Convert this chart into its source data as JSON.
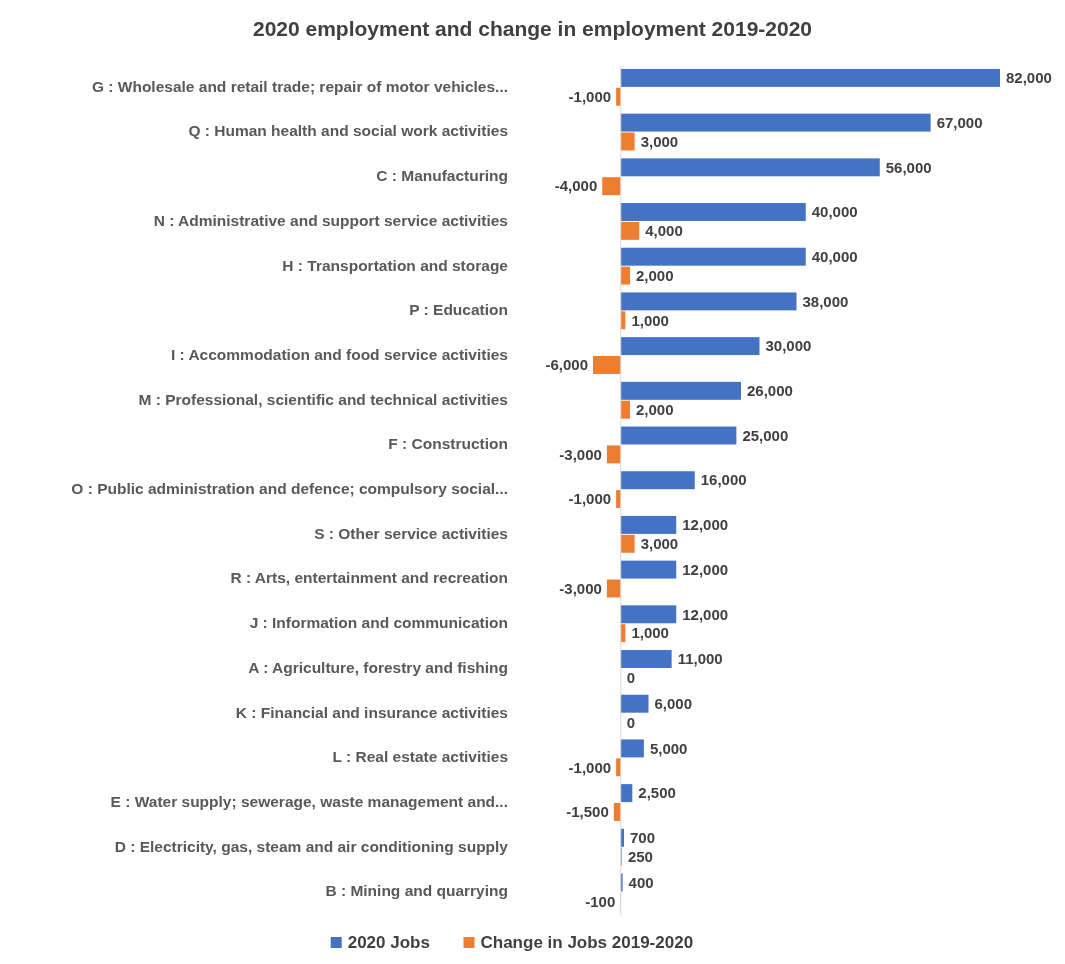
{
  "chart_data": {
    "type": "bar",
    "orientation": "horizontal",
    "title": "2020 employment and change in employment 2019-2020",
    "categories": [
      "G : Wholesale and retail trade; repair of motor vehicles...",
      "Q : Human health and social work activities",
      "C : Manufacturing",
      "N : Administrative and support service activities",
      "H : Transportation and storage",
      "P : Education",
      "I : Accommodation and food service activities",
      "M : Professional, scientific and technical activities",
      "F : Construction",
      "O : Public administration and defence; compulsory social...",
      "S : Other service activities",
      "R : Arts, entertainment and recreation",
      "J : Information and communication",
      "A : Agriculture, forestry and fishing",
      "K : Financial and insurance activities",
      "L : Real estate activities",
      "E : Water supply; sewerage, waste management and...",
      "D : Electricity, gas, steam and air conditioning supply",
      "B : Mining and quarrying"
    ],
    "series": [
      {
        "name": "2020 Jobs",
        "color": "#4472c4",
        "values": [
          82000,
          67000,
          56000,
          40000,
          40000,
          38000,
          30000,
          26000,
          25000,
          16000,
          12000,
          12000,
          12000,
          11000,
          6000,
          5000,
          2500,
          700,
          400
        ],
        "value_labels": [
          "82,000",
          "67,000",
          "56,000",
          "40,000",
          "40,000",
          "38,000",
          "30,000",
          "26,000",
          "25,000",
          "16,000",
          "12,000",
          "12,000",
          "12,000",
          "11,000",
          "6,000",
          "5,000",
          "2,500",
          "700",
          "400"
        ]
      },
      {
        "name": "Change in Jobs 2019-2020",
        "color": "#ed7d31",
        "values": [
          -1000,
          3000,
          -4000,
          4000,
          2000,
          1000,
          -6000,
          2000,
          -3000,
          -1000,
          3000,
          -3000,
          1000,
          0,
          0,
          -1000,
          -1500,
          250,
          -100
        ],
        "value_labels": [
          "-1,000",
          "3,000",
          "-4,000",
          "4,000",
          "2,000",
          "1,000",
          "-6,000",
          "2,000",
          "-3,000",
          "-1,000",
          "3,000",
          "-3,000",
          "1,000",
          "0",
          "0",
          "-1,000",
          "-1,500",
          "250",
          "-100"
        ]
      }
    ],
    "legend": "bottom",
    "tick_labels": "y",
    "grid": false
  }
}
